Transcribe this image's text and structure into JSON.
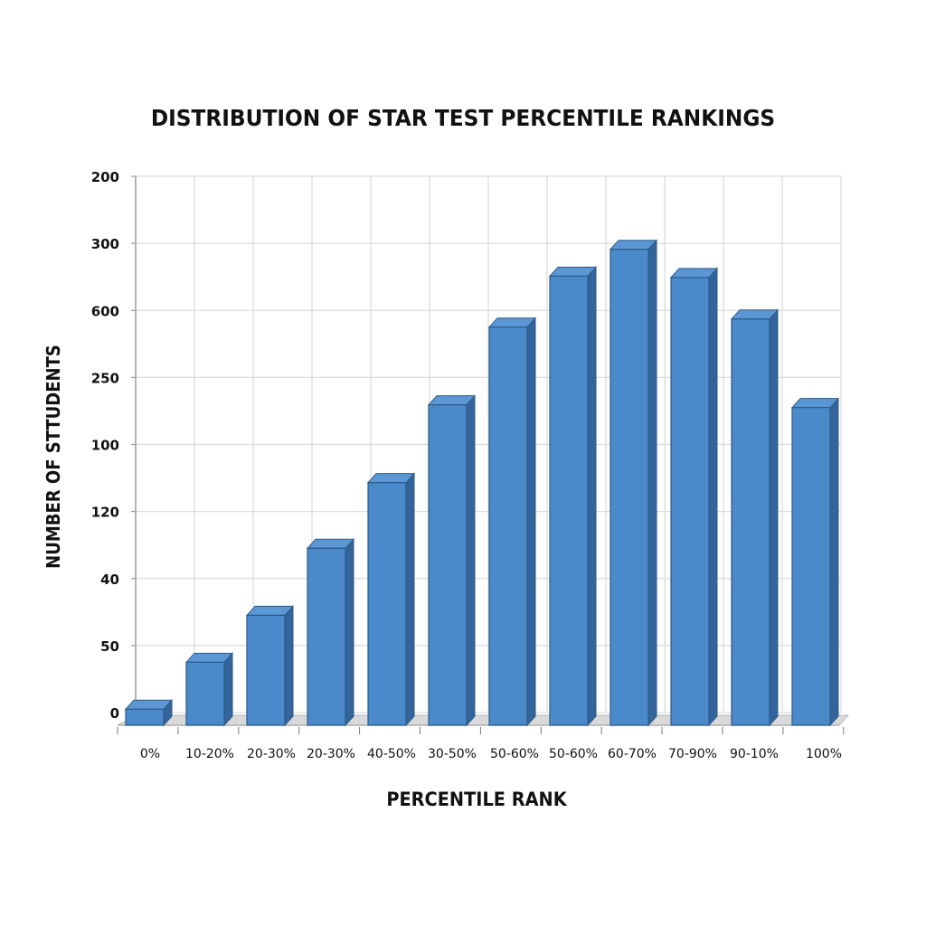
{
  "chart_data": {
    "type": "bar",
    "style": "3d-column",
    "title": "DISTRIBUTION OF STAR TEST PERCENTILE RANKINGS",
    "xlabel": "PERCENTILE RANK",
    "ylabel": "NUMBER OF STTUDENTS",
    "categories": [
      "0%",
      "10-20%",
      "20-30%",
      "20-30%",
      "40-50%",
      "30-50%",
      "50-60%",
      "50-60%",
      "60-70%",
      "70-90%",
      "90-10%",
      "100%"
    ],
    "values": [
      12,
      47,
      82,
      132,
      181,
      239,
      297,
      335,
      355,
      334,
      303,
      237
    ],
    "y_tick_labels_top_to_bottom": [
      "200",
      "300",
      "600",
      "250",
      "100",
      "120",
      "40",
      "50",
      "0"
    ],
    "ylim": [
      0,
      400
    ],
    "grid": true,
    "legend": null,
    "colors": {
      "bar_face": "#4a8acb",
      "bar_side": "#33659a",
      "bar_top": "#5b97d3",
      "bar_outline": "#2d5a8a",
      "grid": "#dcdcdc",
      "floor": "#d9d9d9"
    }
  }
}
